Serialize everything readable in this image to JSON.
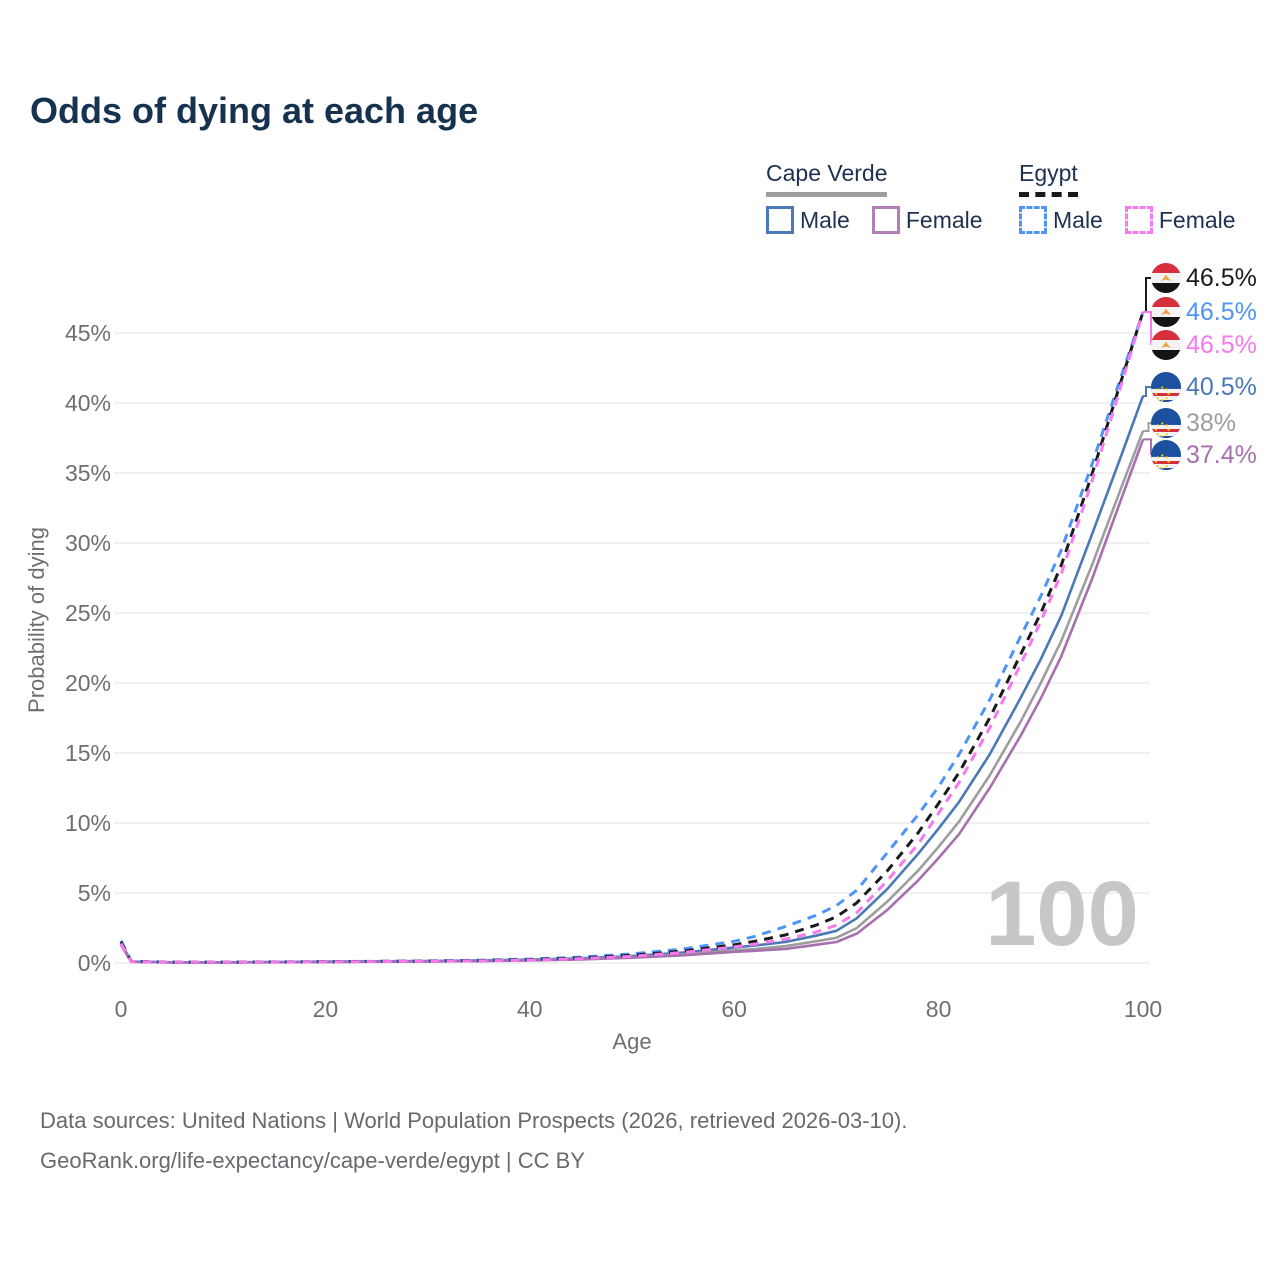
{
  "title": "Odds of dying at each age",
  "legend": {
    "groups": [
      {
        "name": "Cape Verde",
        "line_style": "solid",
        "line_color": "#9e9e9e",
        "items": [
          {
            "label": "Male",
            "color": "#4a7ab5",
            "dashed": false
          },
          {
            "label": "Female",
            "color": "#b27fb5",
            "dashed": false
          }
        ]
      },
      {
        "name": "Egypt",
        "line_style": "dashed",
        "line_color": "#1a1a1a",
        "items": [
          {
            "label": "Male",
            "color": "#4e94f8",
            "dashed": true
          },
          {
            "label": "Female",
            "color": "#f679ef",
            "dashed": true
          }
        ]
      }
    ]
  },
  "chart_data": {
    "type": "line",
    "title": "Odds of dying at each age",
    "xlabel": "Age",
    "ylabel": "Probability of dying",
    "x_ticks": [
      0,
      20,
      40,
      60,
      80,
      100
    ],
    "y_ticks": [
      "0%",
      "5%",
      "10%",
      "15%",
      "20%",
      "25%",
      "30%",
      "35%",
      "40%",
      "45%"
    ],
    "y_tick_values": [
      0,
      5,
      10,
      15,
      20,
      25,
      30,
      35,
      40,
      45
    ],
    "xlim": [
      0,
      100
    ],
    "ylim": [
      0,
      48
    ],
    "grid": "horizontal",
    "hover_age_watermark": "100",
    "ages": [
      0,
      1,
      5,
      10,
      15,
      20,
      25,
      30,
      35,
      40,
      45,
      50,
      55,
      60,
      62,
      65,
      68,
      70,
      72,
      75,
      78,
      80,
      82,
      85,
      88,
      90,
      92,
      95,
      98,
      100
    ],
    "series": [
      {
        "name": "Egypt combined",
        "country": "Egypt",
        "sex": "All",
        "color": "#1a1a1a",
        "dashed": true,
        "flag": "egypt",
        "end_label": "46.5%",
        "values": [
          1.5,
          0.11,
          0.05,
          0.05,
          0.07,
          0.09,
          0.11,
          0.13,
          0.17,
          0.24,
          0.36,
          0.55,
          0.85,
          1.3,
          1.55,
          2.0,
          2.7,
          3.3,
          4.3,
          6.6,
          9.3,
          11.4,
          13.6,
          17.5,
          22.0,
          25.0,
          28.4,
          34.9,
          41.9,
          46.5
        ]
      },
      {
        "name": "Egypt male",
        "country": "Egypt",
        "sex": "Male",
        "color": "#4e94f8",
        "dashed": true,
        "flag": "egypt",
        "end_label": "46.5%",
        "values": [
          1.6,
          0.12,
          0.06,
          0.06,
          0.08,
          0.1,
          0.12,
          0.15,
          0.2,
          0.28,
          0.42,
          0.65,
          1.0,
          1.55,
          1.9,
          2.6,
          3.4,
          4.1,
          5.2,
          7.9,
          10.6,
          12.6,
          14.9,
          18.8,
          23.3,
          26.2,
          29.5,
          35.6,
          42.2,
          46.5
        ]
      },
      {
        "name": "Egypt female",
        "country": "Egypt",
        "sex": "Female",
        "color": "#f679ef",
        "dashed": true,
        "flag": "egypt",
        "end_label": "46.5%",
        "values": [
          1.4,
          0.1,
          0.05,
          0.05,
          0.06,
          0.08,
          0.1,
          0.12,
          0.15,
          0.21,
          0.31,
          0.48,
          0.75,
          1.15,
          1.35,
          1.7,
          2.2,
          2.7,
          3.6,
          5.9,
          8.5,
          10.7,
          12.9,
          16.8,
          21.3,
          24.4,
          27.8,
          34.4,
          41.6,
          46.5
        ]
      },
      {
        "name": "Cape Verde male",
        "country": "Cape Verde",
        "sex": "Male",
        "color": "#4a7ab5",
        "dashed": false,
        "flag": "cape-verde",
        "end_label": "40.5%",
        "values": [
          1.45,
          0.1,
          0.05,
          0.05,
          0.07,
          0.1,
          0.12,
          0.14,
          0.18,
          0.24,
          0.34,
          0.5,
          0.75,
          1.1,
          1.25,
          1.5,
          1.95,
          2.3,
          3.2,
          5.3,
          7.8,
          9.6,
          11.5,
          14.9,
          18.9,
          21.7,
          24.8,
          30.6,
          36.5,
          40.5
        ]
      },
      {
        "name": "Cape Verde combined",
        "country": "Cape Verde",
        "sex": "All",
        "color": "#9e9e9e",
        "dashed": false,
        "flag": "cape-verde",
        "end_label": "38%",
        "values": [
          1.35,
          0.09,
          0.05,
          0.05,
          0.06,
          0.08,
          0.1,
          0.12,
          0.15,
          0.2,
          0.28,
          0.42,
          0.62,
          0.9,
          1.0,
          1.2,
          1.55,
          1.8,
          2.5,
          4.4,
          6.6,
          8.3,
          10.1,
          13.4,
          17.2,
          20.0,
          23.0,
          28.4,
          34.2,
          38.0
        ]
      },
      {
        "name": "Cape Verde female",
        "country": "Cape Verde",
        "sex": "Female",
        "color": "#a76fae",
        "dashed": false,
        "flag": "cape-verde",
        "end_label": "37.4%",
        "values": [
          1.3,
          0.08,
          0.04,
          0.04,
          0.05,
          0.07,
          0.09,
          0.11,
          0.14,
          0.18,
          0.25,
          0.38,
          0.55,
          0.8,
          0.87,
          1.0,
          1.3,
          1.5,
          2.1,
          3.8,
          5.9,
          7.5,
          9.2,
          12.5,
          16.2,
          18.9,
          21.9,
          27.4,
          33.4,
          37.4
        ]
      }
    ]
  },
  "footer": {
    "line1": "Data sources: United Nations | World Population Prospects (2026, retrieved 2026-03-10).",
    "line2": "GeoRank.org/life-expectancy/cape-verde/egypt | CC BY"
  }
}
